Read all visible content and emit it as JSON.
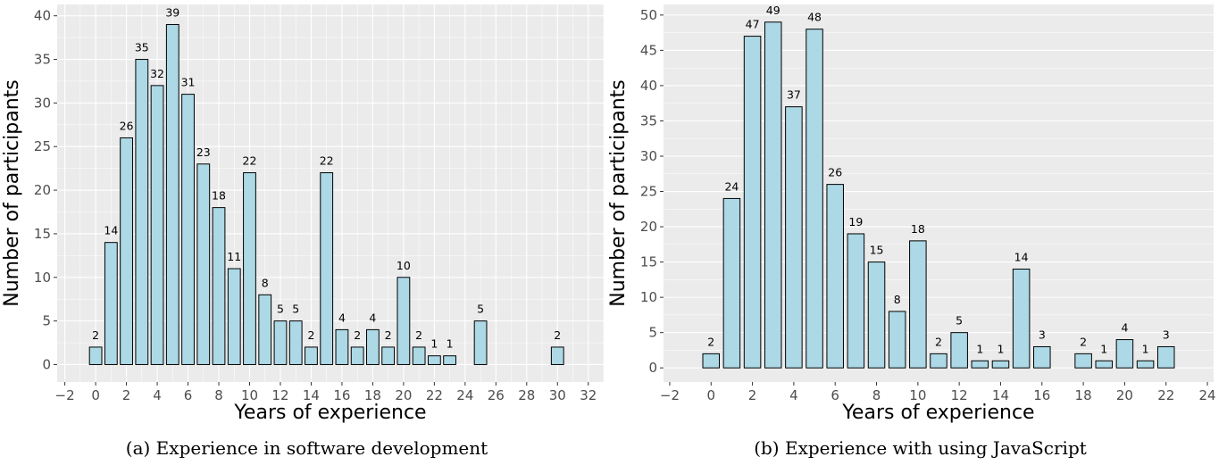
{
  "colors": {
    "panel_bg": "#ebebeb",
    "grid_major": "#ffffff",
    "bar_fill": "#add8e6",
    "bar_stroke": "#000000"
  },
  "chart_data": [
    {
      "type": "bar",
      "caption": "(a) Experience in software development",
      "xlabel": "Years of experience",
      "ylabel": "Number of participants",
      "xlim": [
        -2.5,
        33
      ],
      "ylim": [
        -2,
        41.3
      ],
      "xticks": [
        -2,
        0,
        2,
        4,
        6,
        8,
        10,
        12,
        14,
        16,
        18,
        20,
        22,
        24,
        26,
        28,
        30,
        32
      ],
      "yticks": [
        0,
        5,
        10,
        15,
        20,
        25,
        30,
        35,
        40
      ],
      "x": [
        0,
        1,
        2,
        3,
        4,
        5,
        6,
        7,
        8,
        9,
        10,
        11,
        12,
        13,
        14,
        15,
        16,
        17,
        18,
        19,
        20,
        21,
        22,
        23,
        25,
        30
      ],
      "values": [
        2,
        14,
        26,
        35,
        32,
        39,
        31,
        23,
        18,
        11,
        22,
        8,
        5,
        5,
        2,
        22,
        4,
        2,
        4,
        2,
        10,
        2,
        1,
        1,
        5,
        2
      ],
      "grid": true
    },
    {
      "type": "bar",
      "caption": "(b) Experience with using JavaScript",
      "xlabel": "Years of experience",
      "ylabel": "Number of participants",
      "xlim": [
        -2.3,
        24.3
      ],
      "ylim": [
        -2,
        51.5
      ],
      "xticks": [
        -2,
        0,
        2,
        4,
        6,
        8,
        10,
        12,
        14,
        16,
        18,
        20,
        22,
        24
      ],
      "yticks": [
        0,
        5,
        10,
        15,
        20,
        25,
        30,
        35,
        40,
        45,
        50
      ],
      "x": [
        0,
        1,
        2,
        3,
        4,
        5,
        6,
        7,
        8,
        9,
        10,
        11,
        12,
        13,
        14,
        15,
        16,
        18,
        19,
        20,
        21,
        22
      ],
      "values": [
        2,
        24,
        47,
        49,
        37,
        48,
        26,
        19,
        15,
        8,
        18,
        2,
        5,
        1,
        1,
        14,
        3,
        2,
        1,
        4,
        1,
        3
      ],
      "grid": true
    }
  ]
}
